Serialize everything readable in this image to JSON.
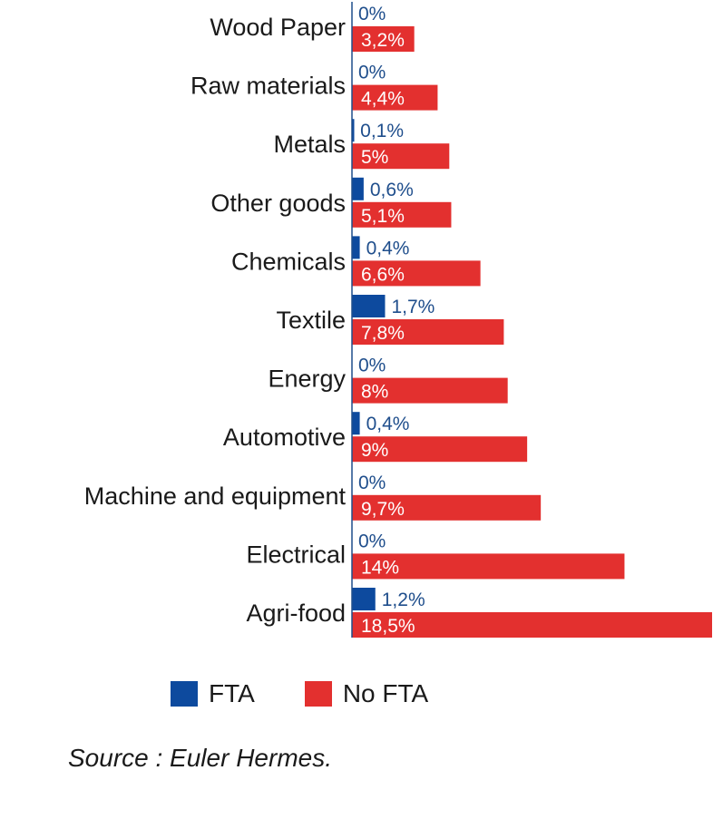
{
  "chart_data": {
    "type": "bar",
    "orientation": "horizontal",
    "categories": [
      "Wood Paper",
      "Raw materials",
      "Metals",
      "Other goods",
      "Chemicals",
      "Textile",
      "Energy",
      "Automotive",
      "Machine and equipment",
      "Electrical",
      "Agri-food"
    ],
    "series": [
      {
        "name": "FTA",
        "color": "#0d4a9e",
        "values": [
          0,
          0,
          0.1,
          0.6,
          0.4,
          1.7,
          0,
          0.4,
          0,
          0,
          1.2
        ],
        "labels": [
          "0%",
          "0%",
          "0,1%",
          "0,6%",
          "0,4%",
          "1,7%",
          "0%",
          "0,4%",
          "0%",
          "0%",
          "1,2%"
        ]
      },
      {
        "name": "No FTA",
        "color": "#e3302f",
        "values": [
          3.2,
          4.4,
          5,
          5.1,
          6.6,
          7.8,
          8,
          9,
          9.7,
          14,
          18.5
        ],
        "labels": [
          "3,2%",
          "4,4%",
          "5%",
          "5,1%",
          "6,6%",
          "7,8%",
          "8%",
          "9%",
          "9,7%",
          "14%",
          "18,5%"
        ]
      }
    ],
    "xlim": [
      0,
      18.5
    ],
    "grid": false,
    "legend_position": "bottom"
  },
  "legend": {
    "fta_label": "FTA",
    "nofta_label": "No FTA",
    "fta_color": "#0d4a9e",
    "nofta_color": "#e3302f"
  },
  "source": "Source : Euler Hermes."
}
